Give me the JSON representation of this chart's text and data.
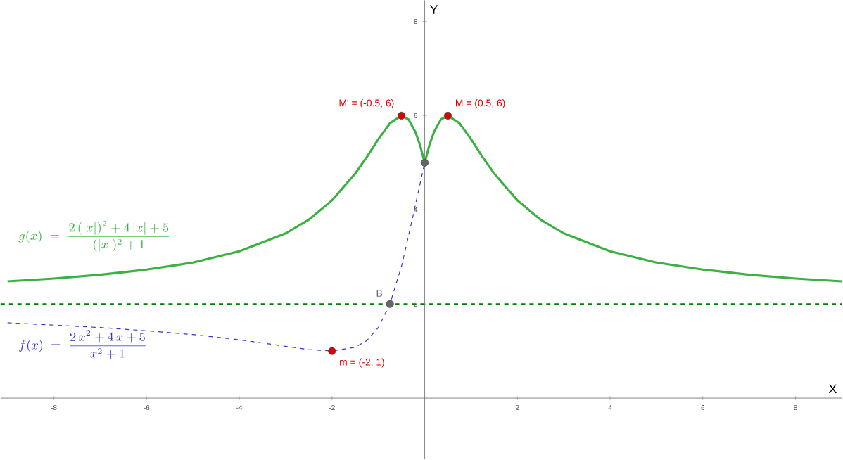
{
  "chart_data": {
    "type": "line",
    "xlabel": "X",
    "ylabel": "Y",
    "xlim": [
      -9.15,
      9.0
    ],
    "ylim": [
      -1.3,
      8.45
    ],
    "xticks": [
      -8,
      -6,
      -4,
      -2,
      2,
      4,
      6,
      8
    ],
    "yticks": [
      2,
      4,
      6,
      8
    ],
    "series": [
      {
        "name": "g(x) \\;=\\; \\frac{2\\,(|x|)^{2}+4\\,|x|+5}{(|x|)^{2}+1}",
        "type": "line",
        "line_style": "solid",
        "color": "#3cb043",
        "x": [
          -9,
          -8,
          -7,
          -6,
          -5,
          -4,
          -3,
          -2.5,
          -2,
          -1.5,
          -1.25,
          -1,
          -0.75,
          -0.5,
          -0.35,
          -0.2,
          -0.1,
          0,
          0.1,
          0.2,
          0.35,
          0.5,
          0.75,
          1,
          1.25,
          1.5,
          2,
          2.5,
          3,
          4,
          5,
          6,
          7,
          8,
          9
        ],
        "values": [
          2.48,
          2.54,
          2.62,
          2.73,
          2.88,
          3.12,
          3.5,
          3.79,
          4.2,
          4.77,
          5.12,
          5.5,
          5.84,
          6,
          5.92,
          5.65,
          5.37,
          5,
          5.37,
          5.65,
          5.92,
          6,
          5.84,
          5.5,
          5.12,
          4.77,
          4.2,
          3.79,
          3.5,
          3.12,
          2.88,
          2.73,
          2.62,
          2.54,
          2.48
        ]
      },
      {
        "name": "f(x) \\;=\\; \\frac{2\\,x^{2}+4\\,x+5}{x^{2}+1}",
        "type": "line",
        "line_style": "dashed",
        "color": "#3333cc",
        "x": [
          -9,
          -8,
          -7,
          -6,
          -5,
          -4,
          -3,
          -2.5,
          -2,
          -1.5,
          -1.25,
          -1,
          -0.75,
          -0.5,
          -0.25,
          0
        ],
        "values": [
          1.6,
          1.55,
          1.5,
          1.43,
          1.35,
          1.24,
          1.1,
          1.03,
          1,
          1.08,
          1.22,
          1.5,
          2,
          2.8,
          3.88,
          5
        ]
      },
      {
        "type": "scatter",
        "marker": "circle",
        "x": [
          -0.5,
          0.5,
          -2,
          -0.75,
          0
        ],
        "values": [
          6,
          6,
          1,
          2,
          5
        ],
        "colors": [
          "#dd0000",
          "#dd0000",
          "#dd0000",
          "#666666",
          "#666666"
        ]
      }
    ],
    "ref_lines": [
      {
        "axis": "y",
        "value": 2,
        "color": "#007f00",
        "line_style": "dashed"
      }
    ],
    "annotations": [
      {
        "text": "M' = (-0.5, 6)",
        "x": -0.5,
        "y": 6
      },
      {
        "text": "M = (0.5, 6)",
        "x": 0.5,
        "y": 6
      },
      {
        "text": "m = (-2, 1)",
        "x": -2,
        "y": 1
      },
      {
        "text": "B",
        "x": -0.75,
        "y": 2
      }
    ]
  }
}
